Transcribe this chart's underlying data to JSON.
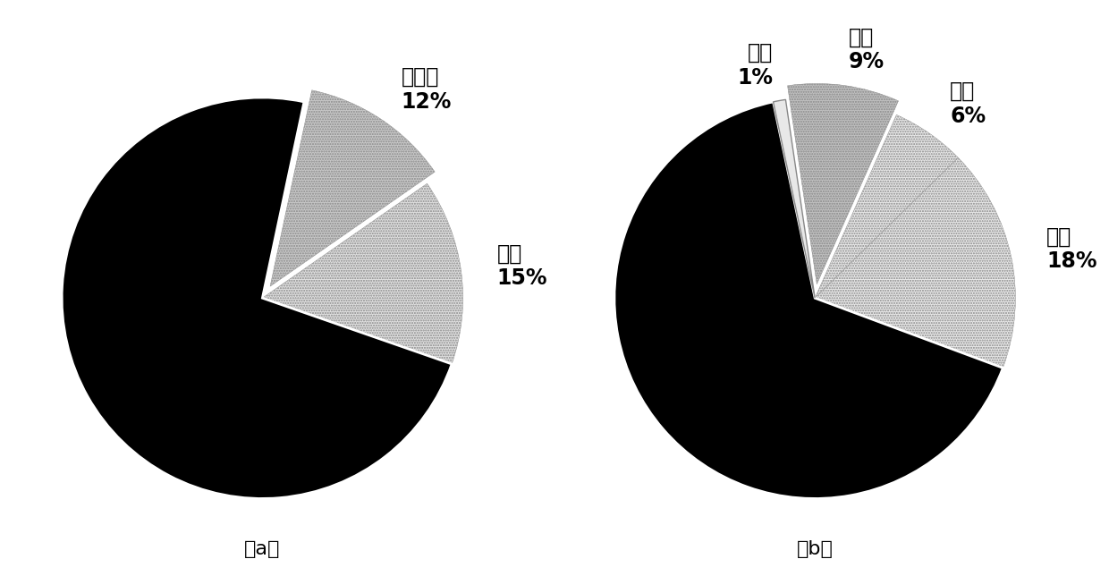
{
  "chart_a": {
    "labels": [
      "剪力墙\n12%",
      "框架\n15%",
      ""
    ],
    "values": [
      12,
      15,
      73
    ],
    "colors": [
      "#c8c8c8",
      "#e0e0e0",
      "#000000"
    ],
    "explode": [
      0.07,
      0,
      0
    ],
    "startangle": 78,
    "subtitle": "（a）"
  },
  "chart_b": {
    "labels": [
      "教室\n6%",
      "办公\n18%",
      "",
      "商业\n1%",
      "其他\n9%"
    ],
    "values": [
      6,
      18,
      66,
      1,
      9
    ],
    "colors": [
      "#e8e8e8",
      "#e8e8e8",
      "#000000",
      "#e8e8e8",
      "#c0c0c0"
    ],
    "explode": [
      0,
      0,
      0,
      0,
      0.07
    ],
    "startangle": 66,
    "subtitle": "（b）"
  },
  "background_color": "#ffffff",
  "label_fontsize": 17,
  "subtitle_fontsize": 16,
  "label_fontweight": "bold"
}
